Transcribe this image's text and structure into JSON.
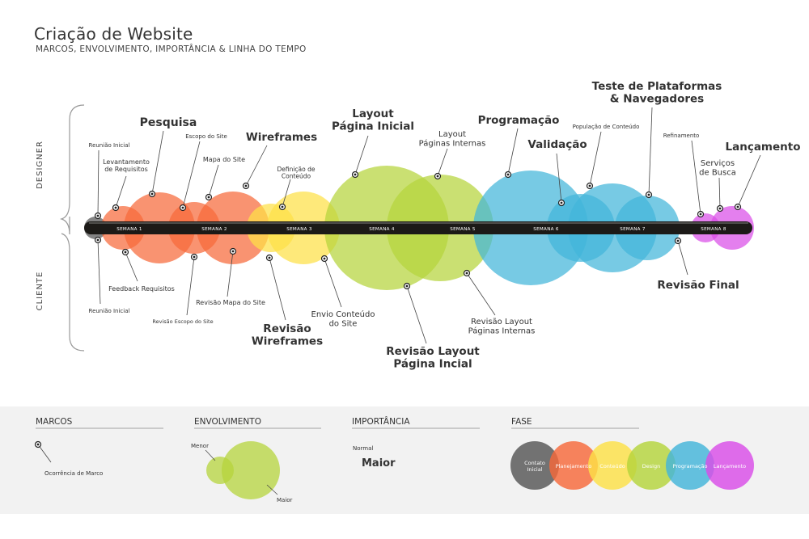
{
  "header": {
    "title": "Criação de Website",
    "subtitle": "MARCOS, ENVOLVIMENTO, IMPORTÂNCIA & LINHA DO TEMPO"
  },
  "axis_labels": {
    "designer": "DESIGNER",
    "cliente": "CLIENTE"
  },
  "weeks": [
    "SEMANA 1",
    "SEMANA 2",
    "SEMANA 3",
    "SEMANA 4",
    "SEMANA 5",
    "SEMANA 6",
    "SEMANA 7",
    "SEMANA 8"
  ],
  "phase_colors": {
    "contato": "#555555",
    "planejamento": "#f7693a",
    "conteudo": "#fde047",
    "design": "#b5d43c",
    "programacao": "#43b5d9",
    "lancamento": "#d94de8"
  },
  "milestones_top": [
    {
      "label": "Reunião Inicial"
    },
    {
      "label": "Levantamento\nde Requisitos"
    },
    {
      "label": "Pesquisa"
    },
    {
      "label": "Escopo do Site"
    },
    {
      "label": "Mapa do Site"
    },
    {
      "label": "Wireframes"
    },
    {
      "label": "Definição de\nConteúdo"
    },
    {
      "label": "Layout\nPágina Inicial"
    },
    {
      "label": "Layout\nPáginas Internas"
    },
    {
      "label": "Programação"
    },
    {
      "label": "Validação"
    },
    {
      "label": "População de Conteúdo"
    },
    {
      "label": "Teste de Plataformas\n& Navegadores"
    },
    {
      "label": "Refinamento"
    },
    {
      "label": "Serviços\nde Busca"
    },
    {
      "label": "Lançamento"
    }
  ],
  "milestones_bottom": [
    {
      "label": "Reunião Inicial"
    },
    {
      "label": "Feedback Requisitos"
    },
    {
      "label": "Revisão Escopo do Site"
    },
    {
      "label": "Revisão Mapa do Site"
    },
    {
      "label": "Revisão\nWireframes"
    },
    {
      "label": "Envio Conteúdo\ndo Site"
    },
    {
      "label": "Revisão Layout\nPágina Incial"
    },
    {
      "label": "Revisão Layout\nPáginas Internas"
    },
    {
      "label": "Revisão Final"
    }
  ],
  "legend": {
    "marcos": {
      "title": "MARCOS",
      "example": "Ocorrência de Marco"
    },
    "envolvimento": {
      "title": "ENVOLVIMENTO",
      "menor": "Menor",
      "maior": "Maior"
    },
    "importancia": {
      "title": "IMPORTÂNCIA",
      "normal": "Normal",
      "maior": "Maior"
    },
    "fase": {
      "title": "FASE",
      "items": [
        {
          "label": "Contato\nInicial",
          "color": "#555555"
        },
        {
          "label": "Planejamento",
          "color": "#f7693a"
        },
        {
          "label": "Conteúdo",
          "color": "#fde047"
        },
        {
          "label": "Design",
          "color": "#b5d43c"
        },
        {
          "label": "Programação",
          "color": "#43b5d9"
        },
        {
          "label": "Lançamento",
          "color": "#d94de8"
        }
      ]
    }
  }
}
